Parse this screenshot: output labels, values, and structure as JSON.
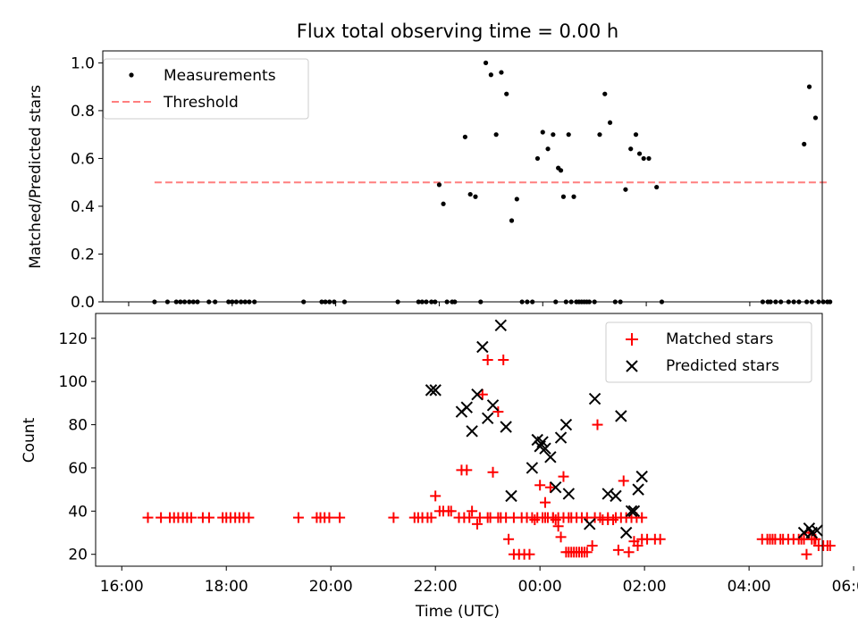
{
  "chart_data": [
    {
      "type": "scatter",
      "title": "Flux total observing time = 0.00 h",
      "xlabel": "",
      "ylabel": "Matched/Predicted stars",
      "xlim": [
        15.5,
        29.4
      ],
      "ylim": [
        0,
        1.05
      ],
      "yticks": [
        0.0,
        0.2,
        0.4,
        0.6,
        0.8,
        1.0
      ],
      "ytick_labels": [
        "0.0",
        "0.2",
        "0.4",
        "0.6",
        "0.8",
        "1.0"
      ],
      "legend_position": "upper-left",
      "series": [
        {
          "name": "Measurements",
          "marker": "dot",
          "color": "#000000",
          "x": [
            16.5,
            16.75,
            16.92,
            17.0,
            17.08,
            17.17,
            17.25,
            17.33,
            17.55,
            17.67,
            17.93,
            18.0,
            18.08,
            18.17,
            18.25,
            18.33,
            18.43,
            19.38,
            19.73,
            19.8,
            19.88,
            19.97,
            20.17,
            21.2,
            21.6,
            21.67,
            21.75,
            21.85,
            21.92,
            22.0,
            22.08,
            22.15,
            22.25,
            22.3,
            22.5,
            22.6,
            22.7,
            22.8,
            22.9,
            23.0,
            23.1,
            23.2,
            23.3,
            23.4,
            23.5,
            23.6,
            23.7,
            23.8,
            23.9,
            24.0,
            24.1,
            24.2,
            24.25,
            24.3,
            24.35,
            24.4,
            24.45,
            24.5,
            24.55,
            24.6,
            24.65,
            24.7,
            24.75,
            24.8,
            24.85,
            24.9,
            25.0,
            25.1,
            25.2,
            25.3,
            25.4,
            25.5,
            25.6,
            25.7,
            25.8,
            25.87,
            25.95,
            26.05,
            26.2,
            26.3,
            28.25,
            28.35,
            28.4,
            28.5,
            28.6,
            28.75,
            28.85,
            28.95,
            29.05,
            29.1,
            29.15,
            29.2,
            29.27,
            29.33,
            29.42,
            29.5,
            29.55
          ],
          "y": [
            0.0,
            0.0,
            0.0,
            0.0,
            0.0,
            0.0,
            0.0,
            0.0,
            0.0,
            0.0,
            0.0,
            0.0,
            0.0,
            0.0,
            0.0,
            0.0,
            0.0,
            0.0,
            0.0,
            0.0,
            0.0,
            0.0,
            0.0,
            0.0,
            0.0,
            0.0,
            0.0,
            0.0,
            0.0,
            0.49,
            0.41,
            0.0,
            0.0,
            0.0,
            0.69,
            0.45,
            0.44,
            0.0,
            1.0,
            0.95,
            0.7,
            0.96,
            0.87,
            0.34,
            0.43,
            0.0,
            0.0,
            0.0,
            0.6,
            0.71,
            0.64,
            0.7,
            0.0,
            0.56,
            0.55,
            0.44,
            0.0,
            0.7,
            0.0,
            0.44,
            0.0,
            0.0,
            0.0,
            0.0,
            0.0,
            0.0,
            0.0,
            0.7,
            0.87,
            0.75,
            0.0,
            0.0,
            0.47,
            0.64,
            0.7,
            0.62,
            0.6,
            0.6,
            0.48,
            0.0,
            0.0,
            0.0,
            0.0,
            0.0,
            0.0,
            0.0,
            0.0,
            0.0,
            0.66,
            0.0,
            0.9,
            0.0,
            0.77,
            0.0,
            0.0,
            0.0,
            0.0
          ]
        },
        {
          "name": "Threshold",
          "type": "line",
          "style": "dashed",
          "color": "#ff7f7f",
          "x": [
            16.5,
            29.5
          ],
          "y": [
            0.5,
            0.5
          ]
        }
      ]
    },
    {
      "type": "scatter",
      "title": "",
      "xlabel": "Time (UTC)",
      "ylabel": "Count",
      "xlim": [
        15.5,
        29.4
      ],
      "ylim": [
        14.5,
        131.5
      ],
      "yticks": [
        20,
        40,
        60,
        80,
        100,
        120
      ],
      "ytick_labels": [
        "20",
        "40",
        "60",
        "80",
        "100",
        "120"
      ],
      "xticks": [
        16,
        18,
        20,
        22,
        24,
        26,
        28,
        30
      ],
      "xtick_labels": [
        "16:00",
        "18:00",
        "20:00",
        "22:00",
        "00:00",
        "02:00",
        "04:00",
        "06:00"
      ],
      "legend_position": "upper-right",
      "series": [
        {
          "name": "Matched stars",
          "marker": "plus",
          "color": "#ff0000",
          "x": [
            16.5,
            16.75,
            16.92,
            17.0,
            17.08,
            17.17,
            17.25,
            17.33,
            17.55,
            17.67,
            17.93,
            18.0,
            18.08,
            18.17,
            18.25,
            18.33,
            18.43,
            19.38,
            19.73,
            19.8,
            19.88,
            19.97,
            20.17,
            21.2,
            21.6,
            21.67,
            21.75,
            21.85,
            21.92,
            22.0,
            22.08,
            22.15,
            22.25,
            22.3,
            22.5,
            22.6,
            22.7,
            22.8,
            22.9,
            23.0,
            23.1,
            23.2,
            23.3,
            23.4,
            23.5,
            23.6,
            23.7,
            23.8,
            23.9,
            24.0,
            24.1,
            24.2,
            24.25,
            24.3,
            24.35,
            24.4,
            24.45,
            24.5,
            24.55,
            24.6,
            24.65,
            24.7,
            24.75,
            24.8,
            24.85,
            24.9,
            25.0,
            25.1,
            25.2,
            25.3,
            25.4,
            25.5,
            25.6,
            25.7,
            25.8,
            25.87,
            25.95,
            26.05,
            26.2,
            26.3,
            28.25,
            28.35,
            28.4,
            28.5,
            28.6,
            28.75,
            28.85,
            28.95,
            29.05,
            29.1,
            29.15,
            29.2,
            29.27,
            29.33,
            29.42,
            29.5,
            29.55,
            22.45,
            22.55,
            22.65,
            22.85,
            23.0,
            23.05,
            23.2,
            23.25,
            23.35,
            23.5,
            23.65,
            23.75,
            23.85,
            23.95,
            24.05,
            24.1,
            24.15,
            24.25,
            24.35,
            24.45,
            24.55,
            24.6,
            24.7,
            24.8,
            24.9,
            25.05,
            25.15,
            25.3,
            25.45,
            25.55,
            25.65,
            25.75,
            25.85,
            25.95,
            28.45,
            28.65,
            29.0,
            29.25
          ],
          "y": [
            37,
            37,
            37,
            37,
            37,
            37,
            37,
            37,
            37,
            37,
            37,
            37,
            37,
            37,
            37,
            37,
            37,
            37,
            37,
            37,
            37,
            37,
            37,
            37,
            37,
            37,
            37,
            37,
            37,
            47,
            40,
            40,
            40,
            40,
            59,
            59,
            40,
            34,
            94,
            110,
            58,
            86,
            110,
            27,
            20,
            20,
            20,
            20,
            36,
            52,
            44,
            51,
            37,
            36,
            33,
            28,
            56,
            21,
            21,
            21,
            21,
            21,
            21,
            21,
            21,
            21,
            24,
            80,
            36,
            36,
            36,
            22,
            54,
            21,
            26,
            24,
            27,
            27,
            27,
            27,
            27,
            27,
            27,
            27,
            27,
            27,
            27,
            27,
            27,
            20,
            30,
            27,
            27,
            24,
            24,
            24,
            24,
            37,
            37,
            37,
            37,
            37,
            37,
            37,
            37,
            37,
            37,
            37,
            37,
            37,
            37,
            37,
            37,
            37,
            37,
            37,
            37,
            37,
            37,
            37,
            37,
            37,
            37,
            37,
            37,
            37,
            37,
            37,
            37,
            37,
            37,
            27,
            27,
            27,
            27
          ]
        },
        {
          "name": "Predicted stars",
          "marker": "x",
          "color": "#000000",
          "x": [
            21.92,
            22.0,
            22.5,
            22.6,
            22.7,
            22.8,
            22.9,
            23.0,
            23.1,
            23.25,
            23.35,
            23.45,
            23.85,
            23.95,
            24.0,
            24.05,
            24.1,
            24.2,
            24.3,
            24.4,
            24.5,
            24.55,
            24.95,
            25.05,
            25.3,
            25.45,
            25.55,
            25.65,
            25.75,
            25.8,
            25.88,
            25.95,
            29.05,
            29.15,
            29.2,
            29.3
          ],
          "y": [
            96,
            96,
            86,
            88,
            77,
            94,
            116,
            83,
            89,
            126,
            79,
            47,
            60,
            73,
            70,
            72,
            69,
            65,
            51,
            74,
            80,
            48,
            34,
            92,
            48,
            47,
            84,
            30,
            40,
            40,
            50,
            56,
            30,
            32,
            30,
            31
          ]
        }
      ]
    }
  ]
}
